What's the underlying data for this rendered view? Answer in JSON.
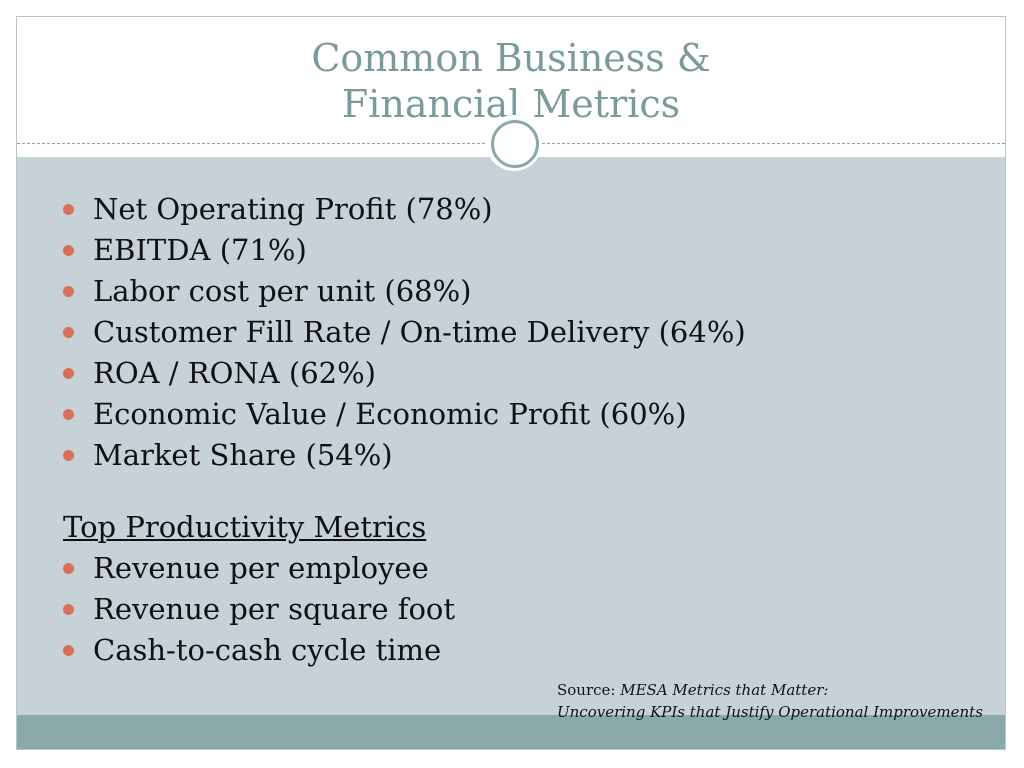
{
  "title": {
    "line1": "Common Business &",
    "line2": "Financial Metrics"
  },
  "financial_metrics": [
    "Net Operating Profit (78%)",
    "EBITDA (71%)",
    "Labor cost per unit (68%)",
    "Customer Fill Rate / On-time Delivery (64%)",
    "ROA / RONA (62%)",
    "Economic Value / Economic Profit (60%)",
    "Market Share (54%)"
  ],
  "productivity": {
    "heading": "Top Productivity Metrics",
    "items": [
      "Revenue per employee",
      "Revenue per square foot",
      "Cash-to-cash cycle time"
    ]
  },
  "source": {
    "label": "Source: ",
    "title_line1": "MESA Metrics that Matter:",
    "title_line2": "Uncovering KPIs that Justify Operational Improvements"
  },
  "colors": {
    "title": "#7b9a9c",
    "content_bg": "#c6d1d8",
    "bar": "#8aa9aa",
    "bullet": "#d9705a"
  }
}
